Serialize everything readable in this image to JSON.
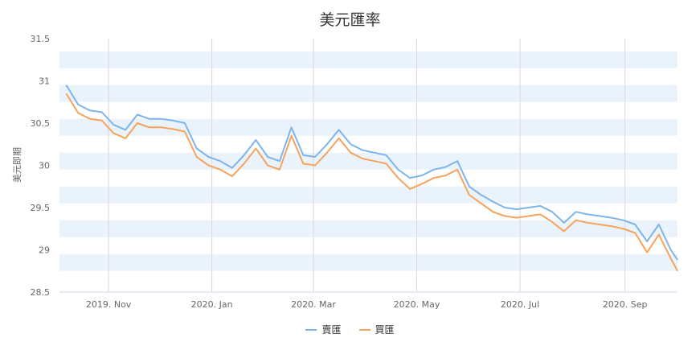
{
  "chart_data": {
    "type": "line",
    "title": "美元匯率",
    "ylabel": "美元即期",
    "xlabel": "",
    "ylim": [
      28.5,
      31.5
    ],
    "yticks": [
      "28.5",
      "29",
      "29.5",
      "30",
      "30.5",
      "31",
      "31.5"
    ],
    "xticks": [
      "2019. Nov",
      "2020. Jan",
      "2020. Mar",
      "2020. May",
      "2020. Jul",
      "2020. Sep"
    ],
    "xrange": [
      "2019-10-03",
      "2020-10-02"
    ],
    "xtick_dates": [
      "2019-11-01",
      "2020-01-01",
      "2020-03-01",
      "2020-05-01",
      "2020-07-01",
      "2020-09-01"
    ],
    "grid": "horizontal alternating bands, vertical lines at month ticks",
    "legend_position": "bottom-center",
    "dates": [
      "2019-10-07",
      "2019-10-14",
      "2019-10-21",
      "2019-10-28",
      "2019-11-04",
      "2019-11-11",
      "2019-11-18",
      "2019-11-25",
      "2019-12-02",
      "2019-12-09",
      "2019-12-16",
      "2019-12-23",
      "2019-12-30",
      "2020-01-06",
      "2020-01-13",
      "2020-01-20",
      "2020-01-27",
      "2020-02-03",
      "2020-02-10",
      "2020-02-17",
      "2020-02-24",
      "2020-03-02",
      "2020-03-09",
      "2020-03-16",
      "2020-03-23",
      "2020-03-30",
      "2020-04-06",
      "2020-04-13",
      "2020-04-20",
      "2020-04-27",
      "2020-05-04",
      "2020-05-11",
      "2020-05-18",
      "2020-05-25",
      "2020-06-01",
      "2020-06-08",
      "2020-06-15",
      "2020-06-22",
      "2020-06-29",
      "2020-07-06",
      "2020-07-13",
      "2020-07-20",
      "2020-07-27",
      "2020-08-03",
      "2020-08-10",
      "2020-08-17",
      "2020-08-24",
      "2020-08-31",
      "2020-09-07",
      "2020-09-14",
      "2020-09-21",
      "2020-09-28",
      "2020-10-02"
    ],
    "series": [
      {
        "name": "賣匯",
        "color": "#7cb5ec",
        "values": [
          30.95,
          30.72,
          30.65,
          30.63,
          30.48,
          30.42,
          30.6,
          30.55,
          30.55,
          30.53,
          30.5,
          30.2,
          30.1,
          30.05,
          29.97,
          30.12,
          30.3,
          30.1,
          30.05,
          30.45,
          30.12,
          30.1,
          30.25,
          30.42,
          30.25,
          30.18,
          30.15,
          30.12,
          29.95,
          29.85,
          29.88,
          29.95,
          29.98,
          30.05,
          29.75,
          29.65,
          29.57,
          29.5,
          29.48,
          29.5,
          29.52,
          29.45,
          29.32,
          29.45,
          29.42,
          29.4,
          29.38,
          29.35,
          29.3,
          29.1,
          29.3,
          29.0,
          28.88
        ]
      },
      {
        "name": "買匯",
        "color": "#f7a35c",
        "values": [
          30.85,
          30.62,
          30.55,
          30.53,
          30.38,
          30.32,
          30.5,
          30.45,
          30.45,
          30.43,
          30.4,
          30.1,
          30.0,
          29.95,
          29.87,
          30.02,
          30.2,
          30.0,
          29.95,
          30.35,
          30.02,
          30.0,
          30.15,
          30.32,
          30.15,
          30.08,
          30.05,
          30.02,
          29.85,
          29.72,
          29.78,
          29.85,
          29.88,
          29.95,
          29.65,
          29.55,
          29.45,
          29.4,
          29.38,
          29.4,
          29.42,
          29.33,
          29.22,
          29.35,
          29.32,
          29.3,
          29.28,
          29.25,
          29.2,
          28.97,
          29.18,
          28.9,
          28.75
        ]
      }
    ]
  }
}
